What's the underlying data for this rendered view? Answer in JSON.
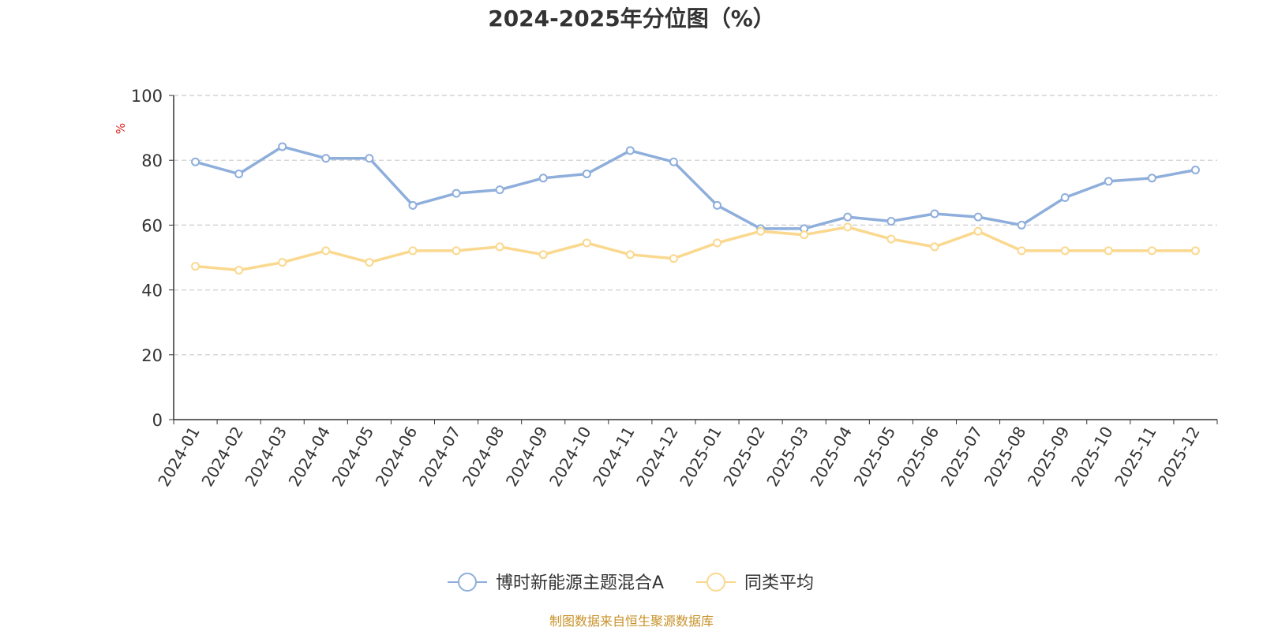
{
  "chart_data": {
    "type": "line",
    "title": "2024-2025年分位图（%）",
    "y_unit": "%",
    "ylim": [
      0,
      100
    ],
    "y_ticks": [
      0,
      20,
      40,
      60,
      80,
      100
    ],
    "grid": true,
    "legend_position": "bottom-center",
    "categories": [
      "2024-01",
      "2024-02",
      "2024-03",
      "2024-04",
      "2024-05",
      "2024-06",
      "2024-07",
      "2024-08",
      "2024-09",
      "2024-10",
      "2024-11",
      "2024-12",
      "2025-01",
      "2025-02",
      "2025-03",
      "2025-04",
      "2025-05",
      "2025-06",
      "2025-07",
      "2025-08",
      "2025-09",
      "2025-10",
      "2025-11",
      "2025-12"
    ],
    "series": [
      {
        "name": "博时新能源主题混合A",
        "color": "#8eaedb",
        "values": [
          79.5,
          75.8,
          84.2,
          80.6,
          80.6,
          66.1,
          69.8,
          70.9,
          74.5,
          75.8,
          83.0,
          79.5,
          66.1,
          58.9,
          58.9,
          62.5,
          61.2,
          63.5,
          62.5,
          60.0,
          68.5,
          73.5,
          74.5,
          77.0
        ]
      },
      {
        "name": "同类平均",
        "color": "#fad88e",
        "values": [
          47.3,
          46.1,
          48.5,
          52.1,
          48.5,
          52.1,
          52.1,
          53.3,
          50.9,
          54.5,
          50.9,
          49.7,
          54.5,
          58.1,
          57.0,
          59.4,
          55.7,
          53.3,
          58.1,
          52.1,
          52.1,
          52.1,
          52.1,
          52.1
        ]
      }
    ],
    "source_note": "制图数据来自恒生聚源数据库"
  }
}
